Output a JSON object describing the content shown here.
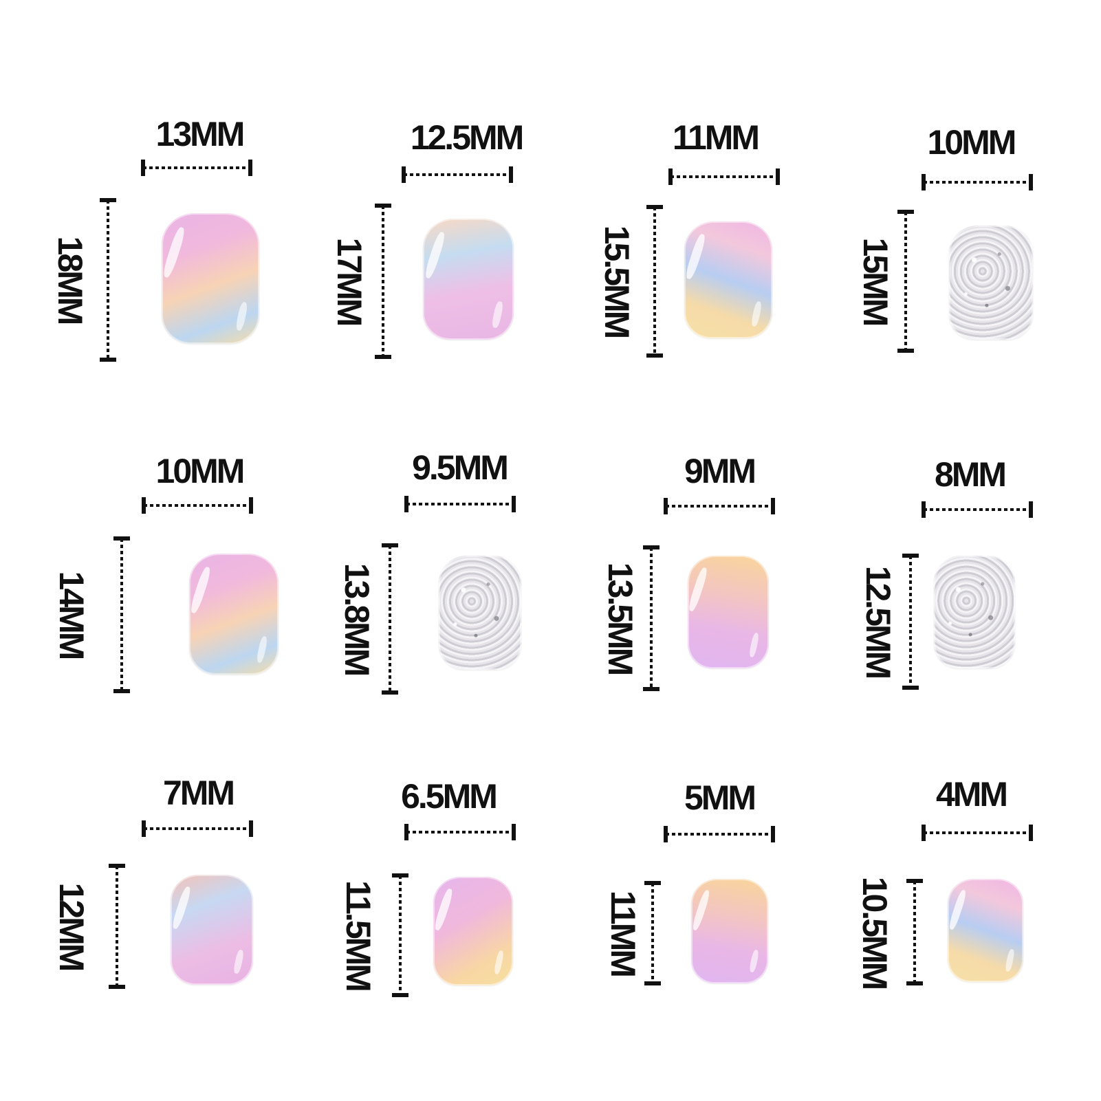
{
  "header_partial": "",
  "cells": [
    {
      "width": "13MM",
      "height": "18MM"
    },
    {
      "width": "12.5MM",
      "height": "17MM"
    },
    {
      "width": "11MM",
      "height": "15.5MM"
    },
    {
      "width": "10MM",
      "height": "15MM"
    },
    {
      "width": "10MM",
      "height": "14MM"
    },
    {
      "width": "9.5MM",
      "height": "13.8MM"
    },
    {
      "width": "9MM",
      "height": "13.5MM"
    },
    {
      "width": "8MM",
      "height": "12.5MM"
    },
    {
      "width": "7MM",
      "height": "12MM"
    },
    {
      "width": "6.5MM",
      "height": "11.5MM"
    },
    {
      "width": "5MM",
      "height": "11MM"
    },
    {
      "width": "4MM",
      "height": "10.5MM"
    }
  ]
}
